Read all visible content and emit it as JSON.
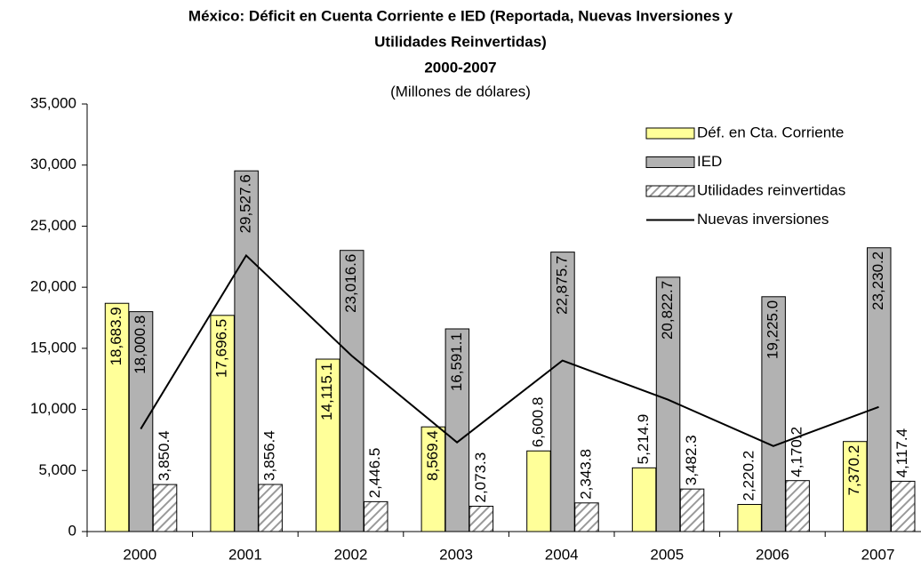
{
  "chart_data": {
    "type": "bar",
    "title": [
      "México: Déficit en Cuenta Corriente e IED (Reportada, Nuevas Inversiones y",
      "Utilidades Reinvertidas)",
      "2000-2007"
    ],
    "subtitle": "(Millones de dólares)",
    "categories": [
      "2000",
      "2001",
      "2002",
      "2003",
      "2004",
      "2005",
      "2006",
      "2007"
    ],
    "series": [
      {
        "name": "Déf. en Cta. Corriente",
        "color": "#ffff99",
        "values": [
          18683.9,
          17696.5,
          14115.1,
          8569.4,
          6600.8,
          5214.9,
          2220.2,
          7370.2
        ],
        "value_labels": [
          "18,683.9",
          "17,696.5",
          "14,115.1",
          "8,569.4",
          "6,600.8",
          "5,214.9",
          "2,220.2",
          "7,370.2"
        ]
      },
      {
        "name": "IED",
        "color": "#b2b2b2",
        "values": [
          18000.8,
          29527.6,
          23016.6,
          16591.1,
          22875.7,
          20822.7,
          19225.0,
          23230.2
        ],
        "value_labels": [
          "18,000.8",
          "29,527.6",
          "23,016.6",
          "16,591.1",
          "22,875.7",
          "20,822.7",
          "19,225.0",
          "23,230.2"
        ]
      },
      {
        "name": "Utilidades reinvertidas",
        "color": "#999999",
        "pattern": "hatch",
        "values": [
          3850.4,
          3856.4,
          2446.5,
          2073.3,
          2343.8,
          3482.3,
          4170.2,
          4117.4
        ],
        "value_labels": [
          "3,850.4",
          "3,856.4",
          "2,446.5",
          "2,073.3",
          "2,343.8",
          "3,482.3",
          "4,170.2",
          "4,117.4"
        ]
      },
      {
        "name": "Nuevas inversiones",
        "color": "#000000",
        "type": "line",
        "values": [
          8400,
          22600,
          14400,
          7300,
          14000,
          10800,
          7000,
          10200
        ]
      }
    ],
    "ylim": [
      0,
      35000
    ],
    "yticks": [
      0,
      {
        "value": 5000,
        "label": "5,000"
      },
      {
        "value": 10000,
        "label": "10,000"
      },
      {
        "value": 15000,
        "label": "15,000"
      },
      {
        "value": 20000,
        "label": "20,000"
      },
      {
        "value": 25000,
        "label": "25,000"
      },
      {
        "value": 30000,
        "label": "30,000"
      },
      {
        "value": 35000,
        "label": "35,000"
      }
    ],
    "grid": false,
    "legend": "top-right"
  }
}
